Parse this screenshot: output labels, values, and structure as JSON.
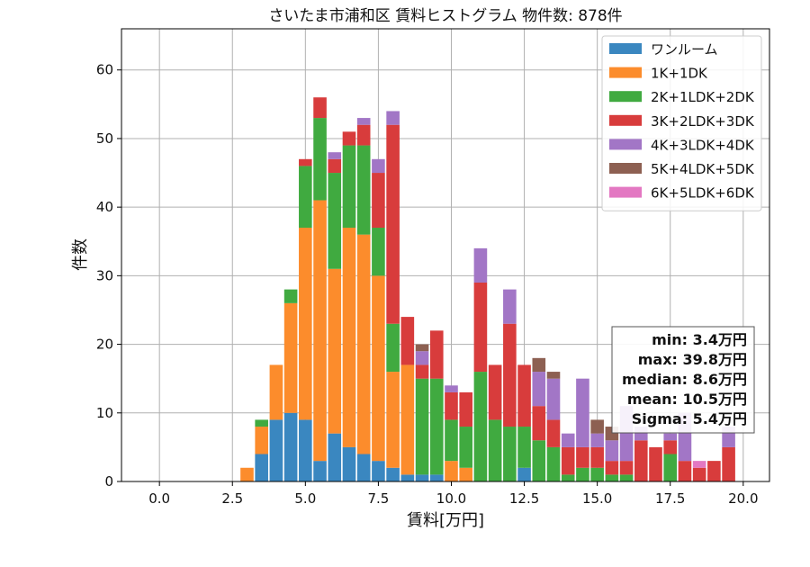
{
  "chart_data": {
    "type": "bar",
    "stacked": true,
    "title": "さいたま市浦和区 賃料ヒストグラム 物件数: 878件",
    "xlabel": "賃料[万円]",
    "ylabel": "件数",
    "xlim": [
      -1.3,
      20.9
    ],
    "ylim": [
      0,
      66
    ],
    "xticks": [
      0.0,
      2.5,
      5.0,
      7.5,
      10.0,
      12.5,
      15.0,
      17.5,
      20.0
    ],
    "xtick_labels": [
      "0.0",
      "2.5",
      "5.0",
      "7.5",
      "10.0",
      "12.5",
      "15.0",
      "17.5",
      "20.0"
    ],
    "yticks": [
      0,
      10,
      20,
      30,
      40,
      50,
      60
    ],
    "ytick_labels": [
      "0",
      "10",
      "20",
      "30",
      "40",
      "50",
      "60"
    ],
    "grid": true,
    "legend_position": "top-right",
    "bin_width": 0.5,
    "x": [
      2.5,
      3.0,
      3.5,
      4.0,
      4.5,
      5.0,
      5.5,
      6.0,
      6.5,
      7.0,
      7.5,
      8.0,
      8.5,
      9.0,
      9.5,
      10.0,
      10.5,
      11.0,
      11.5,
      12.0,
      12.5,
      13.0,
      13.5,
      14.0,
      14.5,
      15.0,
      15.5,
      16.0,
      16.5,
      17.0,
      17.5,
      18.0,
      18.5,
      19.0,
      19.5
    ],
    "series": [
      {
        "name": "ワンルーム",
        "color": "#3a87c0",
        "values": [
          0,
          0,
          4,
          9,
          10,
          9,
          3,
          7,
          5,
          4,
          3,
          2,
          1,
          1,
          1,
          0,
          0,
          0,
          0,
          0,
          2,
          0,
          0,
          0,
          0,
          0,
          0,
          0,
          0,
          0,
          0,
          0,
          0,
          0,
          0
        ]
      },
      {
        "name": "1K+1DK",
        "color": "#fc8c2c",
        "values": [
          0,
          2,
          4,
          8,
          16,
          28,
          38,
          24,
          32,
          32,
          27,
          14,
          16,
          0,
          0,
          3,
          2,
          0,
          0,
          0,
          0,
          0,
          0,
          0,
          0,
          0,
          0,
          0,
          0,
          0,
          0,
          0,
          0,
          0,
          0
        ]
      },
      {
        "name": "2K+1LDK+2DK",
        "color": "#40aa40",
        "values": [
          0,
          0,
          1,
          0,
          2,
          9,
          12,
          14,
          12,
          13,
          7,
          7,
          0,
          14,
          14,
          6,
          6,
          16,
          9,
          8,
          6,
          6,
          5,
          1,
          2,
          2,
          1,
          1,
          0,
          0,
          4,
          0,
          0,
          0,
          0
        ]
      },
      {
        "name": "3K+2LDK+3DK",
        "color": "#d83c3c",
        "values": [
          0,
          0,
          0,
          0,
          0,
          1,
          3,
          2,
          2,
          3,
          8,
          29,
          7,
          2,
          7,
          4,
          5,
          13,
          8,
          15,
          9,
          5,
          4,
          4,
          3,
          3,
          2,
          2,
          6,
          5,
          2,
          3,
          2,
          3,
          5
        ]
      },
      {
        "name": "4K+3LDK+4DK",
        "color": "#a276c6",
        "values": [
          0,
          0,
          0,
          0,
          0,
          0,
          0,
          1,
          0,
          1,
          2,
          2,
          0,
          2,
          0,
          1,
          0,
          5,
          0,
          5,
          0,
          5,
          6,
          2,
          10,
          2,
          3,
          8,
          2,
          0,
          1,
          7,
          0,
          0,
          3
        ]
      },
      {
        "name": "5K+4LDK+5DK",
        "color": "#8d6052",
        "values": [
          0,
          0,
          0,
          0,
          0,
          0,
          0,
          0,
          0,
          0,
          0,
          0,
          0,
          1,
          0,
          0,
          0,
          0,
          0,
          0,
          0,
          2,
          1,
          0,
          0,
          2,
          2,
          0,
          0,
          0,
          0,
          0,
          0,
          0,
          0
        ]
      },
      {
        "name": "6K+5LDK+6DK",
        "color": "#e378c2",
        "values": [
          0,
          0,
          0,
          0,
          0,
          0,
          0,
          0,
          0,
          0,
          0,
          0,
          0,
          0,
          0,
          0,
          0,
          0,
          0,
          0,
          0,
          0,
          0,
          0,
          0,
          0,
          0,
          0,
          0,
          0,
          0,
          0,
          1,
          0,
          0
        ]
      }
    ],
    "stats": [
      "min: 3.4万円",
      "max: 39.8万円",
      "median: 8.6万円",
      "mean: 10.5万円",
      "Sigma: 5.4万円"
    ]
  }
}
